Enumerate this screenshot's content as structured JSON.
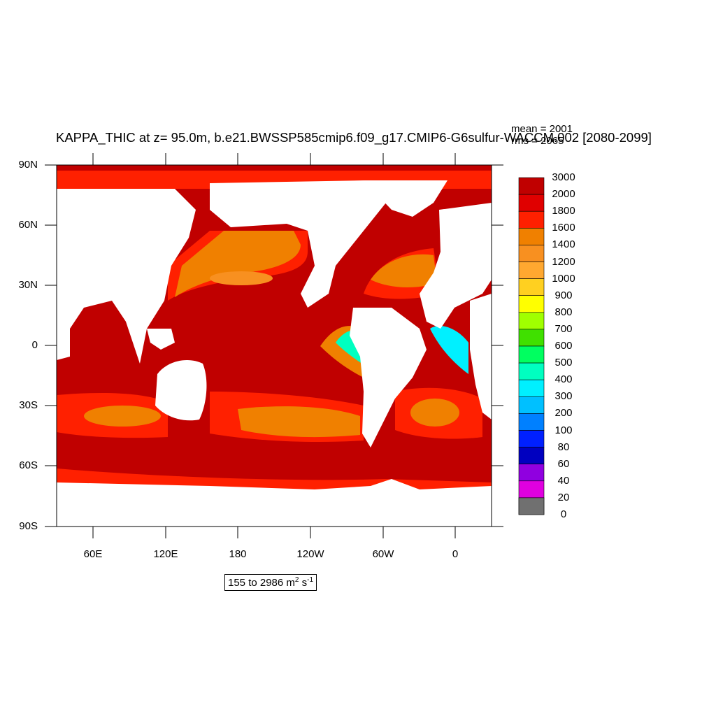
{
  "title": "KAPPA_THIC at z=  95.0m, b.e21.BWSSP585cmip6.f09_g17.CMIP6-G6sulfur-WACCM.002 [2080-2099]",
  "stats": {
    "mean": "mean = 2001",
    "rms": "rms = 2065"
  },
  "axes": {
    "lat_labels": [
      "90N",
      "60N",
      "30N",
      "0",
      "30S",
      "60S",
      "90S"
    ],
    "lon_labels": [
      "60E",
      "120E",
      "180",
      "120W",
      "60W",
      "0"
    ]
  },
  "colorbar": {
    "labels": [
      "3000",
      "2000",
      "1800",
      "1600",
      "1400",
      "1200",
      "1000",
      "900",
      "800",
      "700",
      "600",
      "500",
      "400",
      "300",
      "200",
      "100",
      "80",
      "60",
      "40",
      "20",
      "0"
    ],
    "colors": [
      "#c00000",
      "#e00000",
      "#ff2000",
      "#f08000",
      "#f89020",
      "#ffa830",
      "#ffd020",
      "#ffff00",
      "#a0ff00",
      "#40e000",
      "#00ff60",
      "#00ffc0",
      "#00f0ff",
      "#00c0ff",
      "#0080ff",
      "#0020ff",
      "#0000c0",
      "#9000e0",
      "#e000e0",
      "#d0d0d0",
      "#707070"
    ]
  },
  "range": {
    "prefix": "155 to 2986 m",
    "exp1": "2",
    "mid": " s",
    "exp2": "-1"
  }
}
